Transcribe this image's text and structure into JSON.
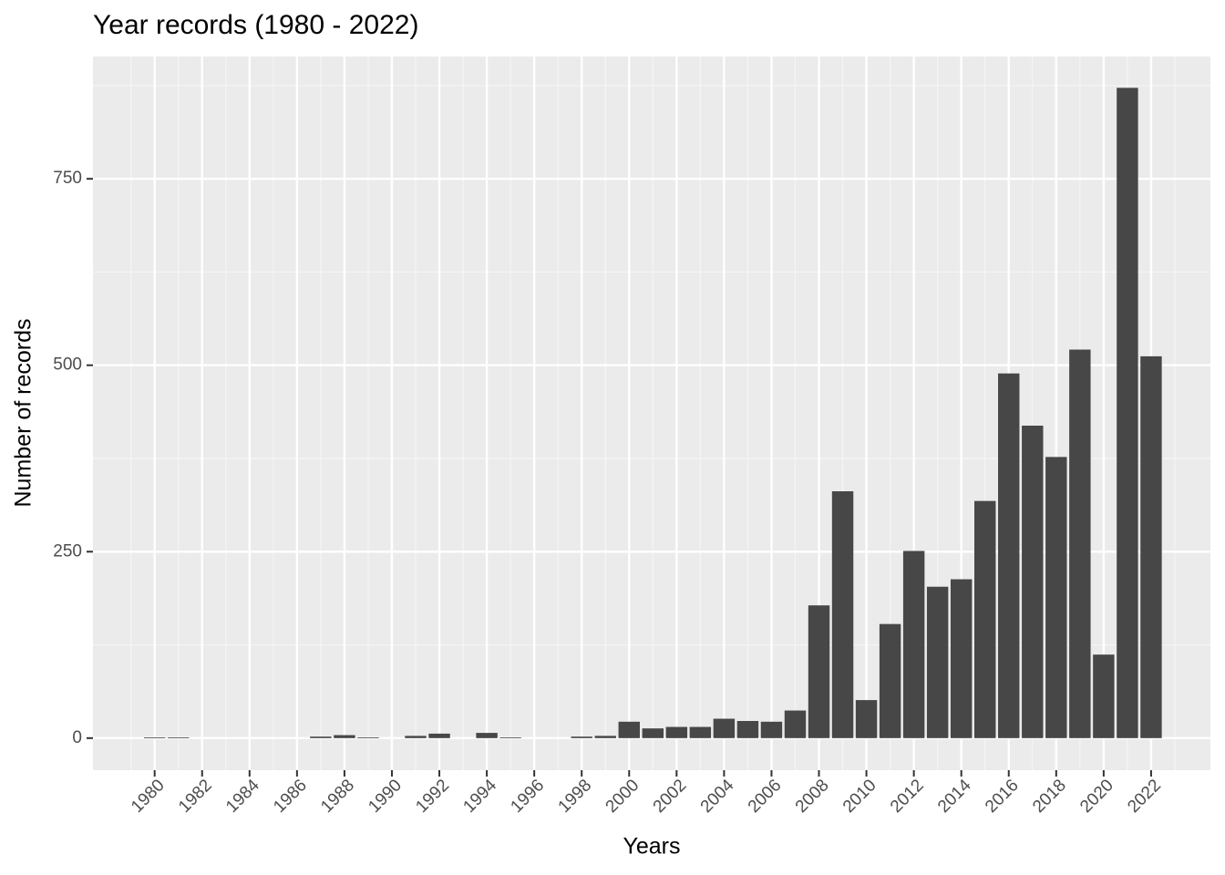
{
  "chart_data": {
    "type": "bar",
    "title": "Year records (1980 - 2022)",
    "x_label": "Years",
    "y_label": "Number of records",
    "x": [
      1980,
      1981,
      1987,
      1988,
      1989,
      1991,
      1992,
      1994,
      1995,
      1998,
      1999,
      2000,
      2001,
      2002,
      2003,
      2004,
      2005,
      2006,
      2007,
      2008,
      2009,
      2010,
      2011,
      2012,
      2013,
      2014,
      2015,
      2016,
      2017,
      2018,
      2019,
      2020,
      2021,
      2022
    ],
    "values": [
      1,
      1,
      2,
      4,
      1,
      3,
      6,
      7,
      1,
      2,
      3,
      22,
      13,
      15,
      15,
      26,
      23,
      22,
      37,
      178,
      331,
      51,
      153,
      251,
      203,
      213,
      318,
      489,
      419,
      377,
      521,
      112,
      872,
      512
    ],
    "color": "#474747",
    "xlim": [
      1977.4,
      2024.5
    ],
    "xticks": [
      1980,
      1982,
      1984,
      1986,
      1988,
      1990,
      1992,
      1994,
      1996,
      1998,
      2000,
      2002,
      2004,
      2006,
      2008,
      2010,
      2012,
      2014,
      2016,
      2018,
      2020,
      2022
    ],
    "ylim": [
      -43,
      914
    ],
    "yticks": [
      0,
      250,
      500,
      750
    ],
    "grid": true
  }
}
